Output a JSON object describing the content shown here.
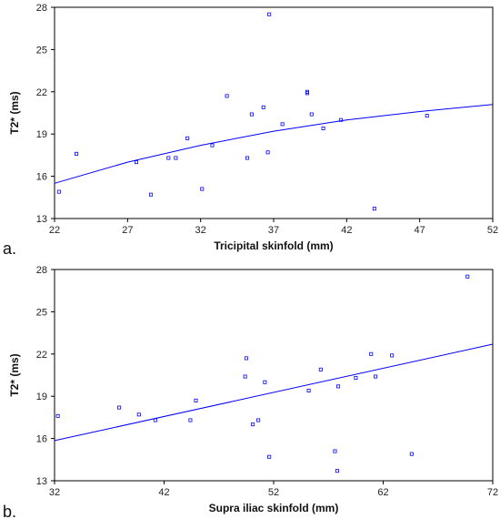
{
  "chart_data": [
    {
      "type": "scatter",
      "panel_label": "a.",
      "xlabel": "Tricipital skinfold (mm)",
      "ylabel": "T2* (ms)",
      "xlim": [
        22,
        52
      ],
      "ylim": [
        13,
        28
      ],
      "xticks": [
        22,
        27,
        32,
        37,
        42,
        47,
        52
      ],
      "yticks": [
        13,
        16,
        19,
        22,
        25,
        28
      ],
      "grid": false,
      "marker_color": "#0000ff",
      "line_color": "#0000ff",
      "points": [
        {
          "x": 22.3,
          "y": 14.9
        },
        {
          "x": 23.5,
          "y": 17.6
        },
        {
          "x": 27.6,
          "y": 17.0
        },
        {
          "x": 28.6,
          "y": 14.7
        },
        {
          "x": 29.8,
          "y": 17.3
        },
        {
          "x": 30.3,
          "y": 17.3
        },
        {
          "x": 31.1,
          "y": 18.7
        },
        {
          "x": 32.1,
          "y": 15.1
        },
        {
          "x": 32.8,
          "y": 18.2
        },
        {
          "x": 33.8,
          "y": 21.7
        },
        {
          "x": 35.2,
          "y": 17.3
        },
        {
          "x": 35.5,
          "y": 20.4
        },
        {
          "x": 36.3,
          "y": 20.9
        },
        {
          "x": 36.6,
          "y": 17.7
        },
        {
          "x": 36.7,
          "y": 27.5
        },
        {
          "x": 37.6,
          "y": 19.7
        },
        {
          "x": 39.3,
          "y": 21.9
        },
        {
          "x": 39.3,
          "y": 22.0
        },
        {
          "x": 39.6,
          "y": 20.4
        },
        {
          "x": 40.4,
          "y": 19.4
        },
        {
          "x": 41.6,
          "y": 20.0
        },
        {
          "x": 43.9,
          "y": 13.7
        },
        {
          "x": 47.5,
          "y": 20.3
        }
      ],
      "fit_curve": [
        {
          "x": 22,
          "y": 15.5
        },
        {
          "x": 27,
          "y": 17.0
        },
        {
          "x": 32,
          "y": 18.2
        },
        {
          "x": 37,
          "y": 19.2
        },
        {
          "x": 42,
          "y": 20.0
        },
        {
          "x": 47,
          "y": 20.6
        },
        {
          "x": 52,
          "y": 21.1
        }
      ]
    },
    {
      "type": "scatter",
      "panel_label": "b.",
      "xlabel": "Supra iliac skinfold (mm)",
      "ylabel": "T2* (ms)",
      "xlim": [
        32,
        72
      ],
      "ylim": [
        13,
        28
      ],
      "xticks": [
        32,
        42,
        52,
        62,
        72
      ],
      "yticks": [
        13,
        16,
        19,
        22,
        25,
        28
      ],
      "grid": false,
      "marker_color": "#0000ff",
      "line_color": "#0000ff",
      "points": [
        {
          "x": 32.3,
          "y": 17.6
        },
        {
          "x": 37.9,
          "y": 18.2
        },
        {
          "x": 39.7,
          "y": 17.7
        },
        {
          "x": 41.2,
          "y": 17.3
        },
        {
          "x": 44.4,
          "y": 17.3
        },
        {
          "x": 44.9,
          "y": 18.7
        },
        {
          "x": 49.4,
          "y": 20.4
        },
        {
          "x": 49.5,
          "y": 21.7
        },
        {
          "x": 50.1,
          "y": 17.0
        },
        {
          "x": 50.6,
          "y": 17.3
        },
        {
          "x": 51.2,
          "y": 20.0
        },
        {
          "x": 51.6,
          "y": 14.7
        },
        {
          "x": 55.2,
          "y": 19.4
        },
        {
          "x": 56.3,
          "y": 20.9
        },
        {
          "x": 57.6,
          "y": 15.1
        },
        {
          "x": 57.8,
          "y": 13.7
        },
        {
          "x": 57.9,
          "y": 19.7
        },
        {
          "x": 59.5,
          "y": 20.3
        },
        {
          "x": 60.9,
          "y": 22.0
        },
        {
          "x": 61.3,
          "y": 20.4
        },
        {
          "x": 62.8,
          "y": 21.9
        },
        {
          "x": 64.6,
          "y": 14.9
        },
        {
          "x": 69.7,
          "y": 27.5
        }
      ],
      "fit_curve": [
        {
          "x": 32,
          "y": 15.85
        },
        {
          "x": 72,
          "y": 22.7
        }
      ]
    }
  ]
}
